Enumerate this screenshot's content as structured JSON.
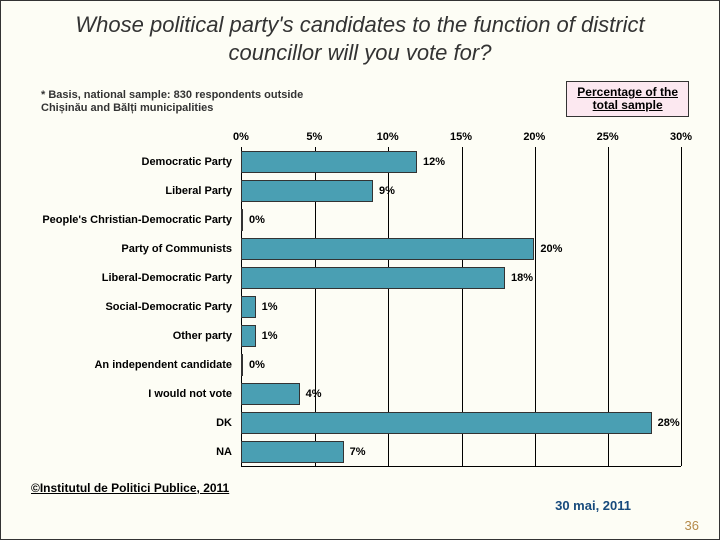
{
  "title": "Whose political party's candidates to the function of district councillor will you vote for?",
  "note": "* Basis, national sample: 830 respondents outside Chișinău and Bălți municipalities",
  "legend_line1": "Percentage of the",
  "legend_line2": "total sample",
  "chart": {
    "type": "bar",
    "xmax": 30,
    "tick_step": 5,
    "bar_color": "#4a9fb3",
    "bar_border": "#333333",
    "grid_color": "#000000",
    "ticks": [
      "0%",
      "5%",
      "10%",
      "15%",
      "20%",
      "25%",
      "30%"
    ],
    "categories": [
      {
        "label": "Democratic Party",
        "value": 12
      },
      {
        "label": "Liberal Party",
        "value": 9
      },
      {
        "label": "People's Christian-Democratic Party",
        "value": 0
      },
      {
        "label": "Party of Communists",
        "value": 20
      },
      {
        "label": "Liberal-Democratic Party",
        "value": 18
      },
      {
        "label": "Social-Democratic Party",
        "value": 1
      },
      {
        "label": "Other party",
        "value": 1
      },
      {
        "label": "An independent candidate",
        "value": 0
      },
      {
        "label": "I would not vote",
        "value": 4
      },
      {
        "label": "DK",
        "value": 28
      },
      {
        "label": "NA",
        "value": 7
      }
    ]
  },
  "copyright": "©Institutul de Politici Publice, 2011",
  "date": "30 mai, 2011",
  "page": "36"
}
